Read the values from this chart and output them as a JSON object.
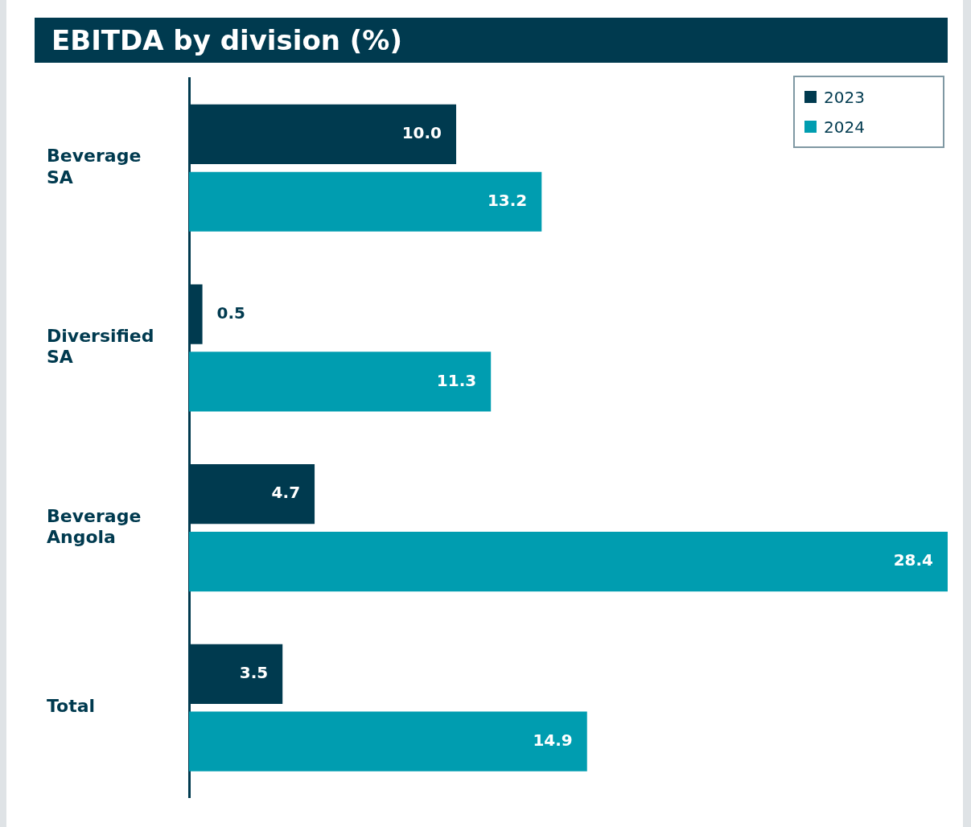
{
  "chart_data": {
    "type": "bar",
    "orientation": "horizontal",
    "title": "EBITDA by division (%)",
    "categories": [
      "Beverage SA",
      "Diversified SA",
      "Beverage Angola",
      "Total"
    ],
    "series": [
      {
        "name": "2023",
        "color": "#003a4f",
        "values": [
          10.0,
          0.5,
          4.7,
          3.5
        ],
        "value_labels": [
          "10.0",
          "0.5",
          "4.7",
          "3.5"
        ]
      },
      {
        "name": "2024",
        "color": "#009db0",
        "values": [
          13.2,
          11.3,
          28.4,
          14.9
        ],
        "value_labels": [
          "13.2",
          "11.3",
          "28.4",
          "14.9"
        ]
      }
    ],
    "legend": "top right"
  }
}
